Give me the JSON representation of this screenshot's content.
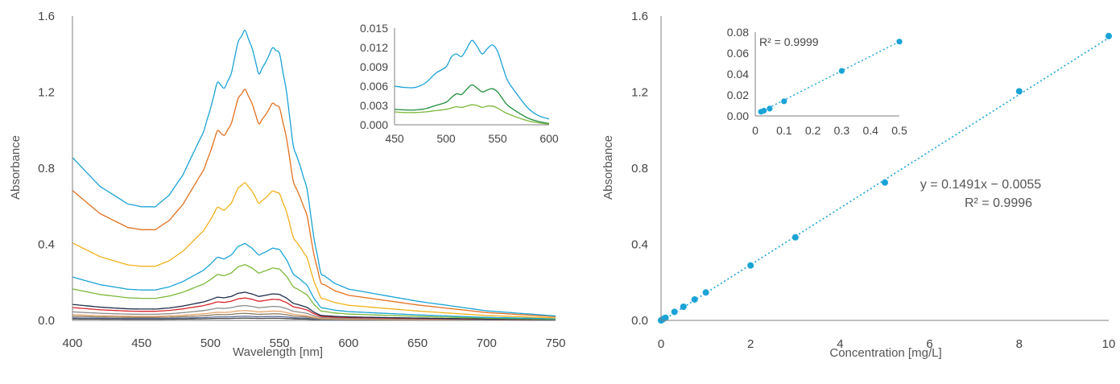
{
  "colors": {
    "s1": "#1AA3D6",
    "s2": "#E2701F",
    "s3": "#F2B019",
    "s4": "#1AA3D6",
    "s5": "#7DB83A",
    "s6": "#1F2D4A",
    "s7": "#D8242A",
    "s8": "#8B8B8B",
    "s9": "#E6A36B",
    "s10": "#8A7A5A",
    "s11": "#5A6B9A",
    "s12": "#4A4A4A",
    "fit": "#1AA3D6",
    "point": "#1AA3D6",
    "in1": "#1AA3D6",
    "in2": "#1E8F3C",
    "in3": "#7DB83A"
  },
  "chart_data": [
    {
      "type": "line",
      "xlabel": "Wavelength [nm]",
      "ylabel": "Absorbance",
      "xlim": [
        400,
        750
      ],
      "ylim": [
        0,
        1.6
      ],
      "xticks": [
        "400",
        "450",
        "500",
        "550",
        "600",
        "650",
        "700",
        "750"
      ],
      "yticks": [
        "0.0",
        "0.4",
        "0.8",
        "1.2",
        "1.6"
      ],
      "grid": false,
      "series_scales": [
        1.52,
        1.21,
        0.72,
        0.4,
        0.29,
        0.145,
        0.115,
        0.075,
        0.05,
        0.035,
        0.02,
        0.01
      ],
      "series_baselines": [
        0.005,
        0.005,
        0.004,
        0.004,
        0.003,
        0.003,
        0.003,
        0.003,
        0.002,
        0.002,
        0.002,
        0.002
      ],
      "profile_x": [
        400,
        420,
        440,
        450,
        460,
        470,
        480,
        490,
        495,
        500,
        505,
        510,
        515,
        520,
        525,
        530,
        535,
        540,
        545,
        550,
        555,
        560,
        565,
        570,
        575,
        580,
        590,
        600,
        650,
        700,
        750
      ],
      "profile_y": [
        0.56,
        0.46,
        0.4,
        0.39,
        0.39,
        0.43,
        0.5,
        0.6,
        0.65,
        0.73,
        0.82,
        0.8,
        0.85,
        0.96,
        1.0,
        0.94,
        0.85,
        0.89,
        0.94,
        0.92,
        0.79,
        0.6,
        0.53,
        0.45,
        0.28,
        0.16,
        0.125,
        0.105,
        0.063,
        0.03,
        0.012
      ]
    },
    {
      "type": "line",
      "xlim": [
        450,
        600
      ],
      "ylim": [
        0,
        0.015
      ],
      "xticks": [
        "450",
        "500",
        "550",
        "600"
      ],
      "yticks": [
        "0.000",
        "0.003",
        "0.006",
        "0.009",
        "0.012",
        "0.015"
      ],
      "series_x": [
        450,
        460,
        470,
        480,
        490,
        500,
        505,
        510,
        515,
        520,
        525,
        530,
        535,
        540,
        545,
        550,
        555,
        560,
        570,
        580,
        590,
        600
      ],
      "series": [
        {
          "values": [
            0.006,
            0.0058,
            0.0058,
            0.0065,
            0.008,
            0.009,
            0.0105,
            0.011,
            0.0106,
            0.0118,
            0.0131,
            0.0122,
            0.011,
            0.0118,
            0.0124,
            0.0114,
            0.009,
            0.0068,
            0.0045,
            0.0025,
            0.0014,
            0.0009
          ]
        },
        {
          "values": [
            0.0024,
            0.0023,
            0.0023,
            0.0025,
            0.003,
            0.0035,
            0.0042,
            0.0048,
            0.0047,
            0.0055,
            0.0062,
            0.0057,
            0.0051,
            0.0054,
            0.0056,
            0.0051,
            0.004,
            0.003,
            0.0019,
            0.001,
            0.0005,
            0.0002
          ]
        },
        {
          "values": [
            0.002,
            0.0019,
            0.0019,
            0.002,
            0.0022,
            0.0024,
            0.0026,
            0.0028,
            0.0027,
            0.0029,
            0.0031,
            0.003,
            0.0027,
            0.0029,
            0.0029,
            0.0026,
            0.0021,
            0.0017,
            0.0011,
            0.0006,
            0.0003,
            0.0001
          ]
        }
      ]
    },
    {
      "type": "scatter",
      "xlabel": "Concentration [mg/L]",
      "ylabel": "Absorbance",
      "xlim": [
        0,
        10
      ],
      "ylim": [
        0,
        1.6
      ],
      "xticks": [
        "0",
        "2",
        "4",
        "6",
        "8",
        "10"
      ],
      "yticks": [
        "0.0",
        "0.4",
        "0.8",
        "1.2",
        "1.6"
      ],
      "x": [
        0.0,
        0.02,
        0.05,
        0.1,
        0.3,
        0.5,
        0.75,
        1.0,
        2.0,
        3.0,
        5.0,
        8.0,
        10.0
      ],
      "y": [
        0.0,
        0.003,
        0.008,
        0.014,
        0.045,
        0.072,
        0.11,
        0.147,
        0.289,
        0.437,
        0.725,
        1.205,
        1.495
      ],
      "trendline": {
        "slope": 0.1491,
        "intercept": -0.0055
      },
      "annotation": {
        "equation": "y = 0.1491x − 0.0055",
        "r2": "R² = 0.9996"
      }
    },
    {
      "type": "scatter",
      "xlim": [
        0,
        0.5
      ],
      "ylim": [
        0,
        0.08
      ],
      "xticks": [
        "0",
        "0.1",
        "0.2",
        "0.3",
        "0.4",
        "0.5"
      ],
      "yticks": [
        "0.00",
        "0.02",
        "0.04",
        "0.06",
        "0.08"
      ],
      "x": [
        0.02,
        0.03,
        0.05,
        0.1,
        0.3,
        0.5
      ],
      "y": [
        0.004,
        0.005,
        0.007,
        0.014,
        0.043,
        0.071
      ],
      "annotation": {
        "r2": "R² = 0.9999"
      }
    }
  ]
}
